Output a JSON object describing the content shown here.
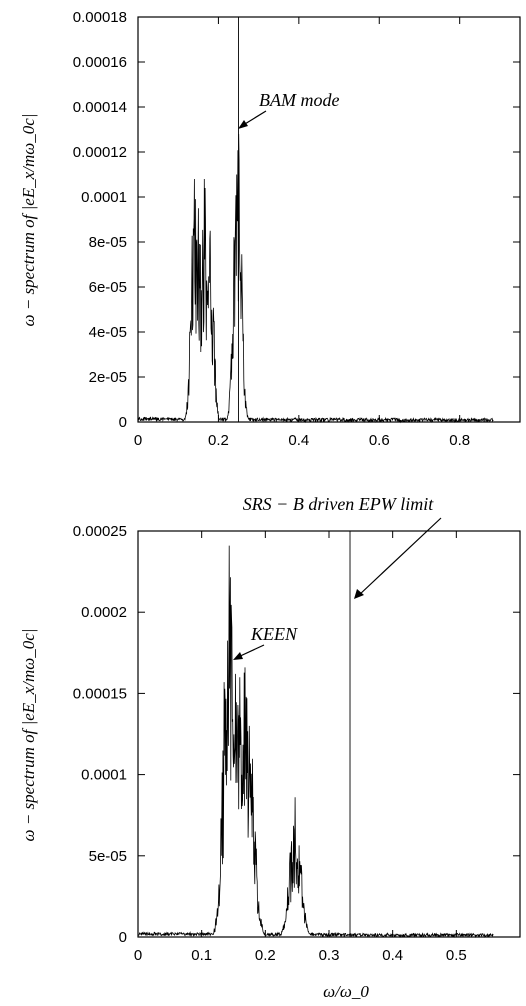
{
  "chart_data": [
    {
      "type": "line",
      "ylabel": "ω − spectrum of  |eE_x/mω_0c|",
      "xlim": [
        0,
        0.95
      ],
      "ylim": [
        0,
        0.00018
      ],
      "x_ticks": [
        0,
        0.2,
        0.4,
        0.6,
        0.8
      ],
      "x_tick_labels": [
        "0",
        "0.2",
        "0.4",
        "0.6",
        "0.8"
      ],
      "y_ticks": [
        0,
        2e-05,
        4e-05,
        6e-05,
        8e-05,
        0.0001,
        0.00012,
        0.00014,
        0.00016,
        0.00018
      ],
      "y_tick_labels": [
        "0",
        "2e-05",
        "4e-05",
        "6e-05",
        "8e-05",
        "0.0001",
        "0.00012",
        "0.00014",
        "0.00016",
        "0.00018"
      ],
      "vline_x": 0.25,
      "annotations": [
        {
          "text": "BAM mode",
          "target": [
            0.25,
            0.000128
          ]
        }
      ],
      "peaks": [
        {
          "x": 0.14,
          "y": 0.000108
        },
        {
          "x": 0.15,
          "y": 9.5e-05
        },
        {
          "x": 0.165,
          "y": 0.000108
        },
        {
          "x": 0.18,
          "y": 8.5e-05
        },
        {
          "x": 0.245,
          "y": 0.00011
        },
        {
          "x": 0.25,
          "y": 0.000128
        }
      ],
      "grid": false
    },
    {
      "type": "line",
      "xlabel": "ω/ω_0",
      "ylabel": "ω − spectrum of  |eE_x/mω_0c|",
      "xlim": [
        0,
        0.6
      ],
      "ylim": [
        0,
        0.00025
      ],
      "x_ticks": [
        0,
        0.1,
        0.2,
        0.3,
        0.4,
        0.5
      ],
      "x_tick_labels": [
        "0",
        "0.1",
        "0.2",
        "0.3",
        "0.4",
        "0.5"
      ],
      "y_ticks": [
        0,
        5e-05,
        0.0001,
        0.00015,
        0.0002,
        0.00025
      ],
      "y_tick_labels": [
        "0",
        "5e-05",
        "0.0001",
        "0.00015",
        "0.0002",
        "0.00025"
      ],
      "vline_x": 0.333,
      "annotations": [
        {
          "text": "KEEN",
          "target": [
            0.145,
            0.000168
          ]
        },
        {
          "text": "SRS − B driven EPW limit",
          "target": [
            0.333,
            0.000208
          ]
        }
      ],
      "peaks": [
        {
          "x": 0.143,
          "y": 0.000241
        },
        {
          "x": 0.153,
          "y": 0.000162
        },
        {
          "x": 0.16,
          "y": 0.00016
        },
        {
          "x": 0.168,
          "y": 0.000166
        },
        {
          "x": 0.175,
          "y": 0.00013
        },
        {
          "x": 0.247,
          "y": 8.6e-05
        }
      ],
      "grid": false
    }
  ]
}
